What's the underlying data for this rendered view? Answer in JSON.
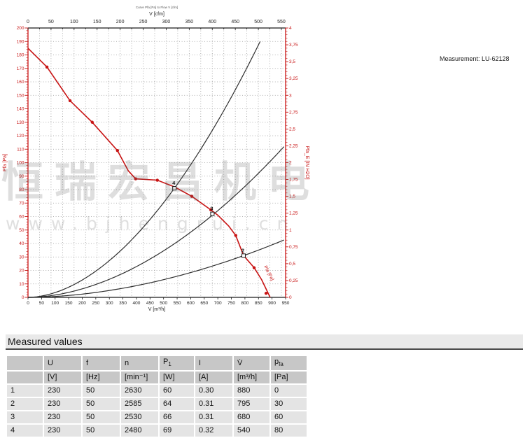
{
  "measurement_label": "Measurement: LU-62128",
  "watermark": {
    "company_cn": "恒瑞宏昌机电",
    "url": "www.bjhengrui.cn"
  },
  "measured_values": {
    "title": "Measured values",
    "columns": [
      {
        "name": "",
        "unit": ""
      },
      {
        "name": "U",
        "unit": "[V]"
      },
      {
        "name": "f",
        "unit": "[Hz]"
      },
      {
        "name": "n",
        "unit": "[min⁻¹]"
      },
      {
        "name": "P",
        "name_sub": "1",
        "unit": "[W]"
      },
      {
        "name": "I",
        "unit": "[A]"
      },
      {
        "name": "V̇",
        "unit": "[m³/h]"
      },
      {
        "name": "p",
        "name_sub": "fa",
        "unit": "[Pa]"
      }
    ],
    "rows": [
      [
        "1",
        "230",
        "50",
        "2630",
        "60",
        "0.30",
        "880",
        "0"
      ],
      [
        "2",
        "230",
        "50",
        "2585",
        "64",
        "0.31",
        "795",
        "30"
      ],
      [
        "3",
        "230",
        "50",
        "2530",
        "66",
        "0.31",
        "680",
        "60"
      ],
      [
        "4",
        "230",
        "50",
        "2480",
        "69",
        "0.32",
        "540",
        "80"
      ]
    ]
  },
  "chart_data": {
    "type": "line",
    "title": "Curve Pfa [Pa] to Flow V [cfm]",
    "top_axis": {
      "label": "V [cfm]",
      "min": 0,
      "max": 550,
      "tick_step": 50,
      "minor_step": 25,
      "cfm_to_m3h": 1.699
    },
    "bottom_axis": {
      "label": "V [m³/h]",
      "min": 0,
      "max": 950,
      "tick_step": 50
    },
    "left_axis": {
      "label": "Pfa [Pa]",
      "min": 0,
      "max": 200,
      "tick_step": 10,
      "minor_step": 2,
      "color": "#c81414"
    },
    "right_axis": {
      "label": "Pfa_E [IN H2O]",
      "min": 0,
      "max": 0.8,
      "tick_step": 0.05,
      "minor_step": 0.01,
      "color": "#c81414",
      "decimal_comma": true
    },
    "grid": {
      "style": "dotted",
      "h_step_pa": 10,
      "v_step_cfm": 25,
      "color": "#9a9a9a"
    },
    "fan_curve": {
      "name": "Pfa [Pa]",
      "color": "#c81414",
      "end_label": "Pfa [Pa]",
      "points": [
        [
          0,
          185
        ],
        [
          70,
          171
        ],
        [
          155,
          146
        ],
        [
          237,
          130
        ],
        [
          330,
          109
        ],
        [
          370,
          94
        ],
        [
          397,
          88
        ],
        [
          477,
          87
        ],
        [
          540,
          82
        ],
        [
          604,
          75
        ],
        [
          674,
          65
        ],
        [
          700,
          61
        ],
        [
          740,
          53
        ],
        [
          766,
          46
        ],
        [
          795,
          31
        ],
        [
          834,
          22
        ],
        [
          862,
          13
        ],
        [
          893,
          0
        ]
      ],
      "dot_markers": [
        [
          70,
          171
        ],
        [
          155,
          146
        ],
        [
          237,
          130
        ],
        [
          330,
          109
        ],
        [
          397,
          88
        ],
        [
          477,
          87
        ],
        [
          604,
          75
        ],
        [
          674,
          65
        ],
        [
          766,
          46
        ],
        [
          834,
          22
        ],
        [
          878,
          3
        ]
      ]
    },
    "operating_points": [
      {
        "id": "4",
        "v": 540,
        "pa": 81
      },
      {
        "id": "3",
        "v": 680,
        "pa": 62
      },
      {
        "id": "2",
        "v": 795,
        "pa": 31
      }
    ],
    "system_curves": [
      {
        "through_v": 540,
        "through_pa": 81,
        "exponent": 1.85,
        "v_max": 860,
        "pa_max": 191,
        "color": "#2e2e2e"
      },
      {
        "through_v": 680,
        "through_pa": 61,
        "exponent": 1.85,
        "v_max": 950,
        "pa_max": 200,
        "color": "#2e2e2e"
      },
      {
        "through_v": 795,
        "through_pa": 31,
        "exponent": 1.85,
        "v_max": 950,
        "pa_max": 200,
        "color": "#2e2e2e"
      }
    ]
  }
}
